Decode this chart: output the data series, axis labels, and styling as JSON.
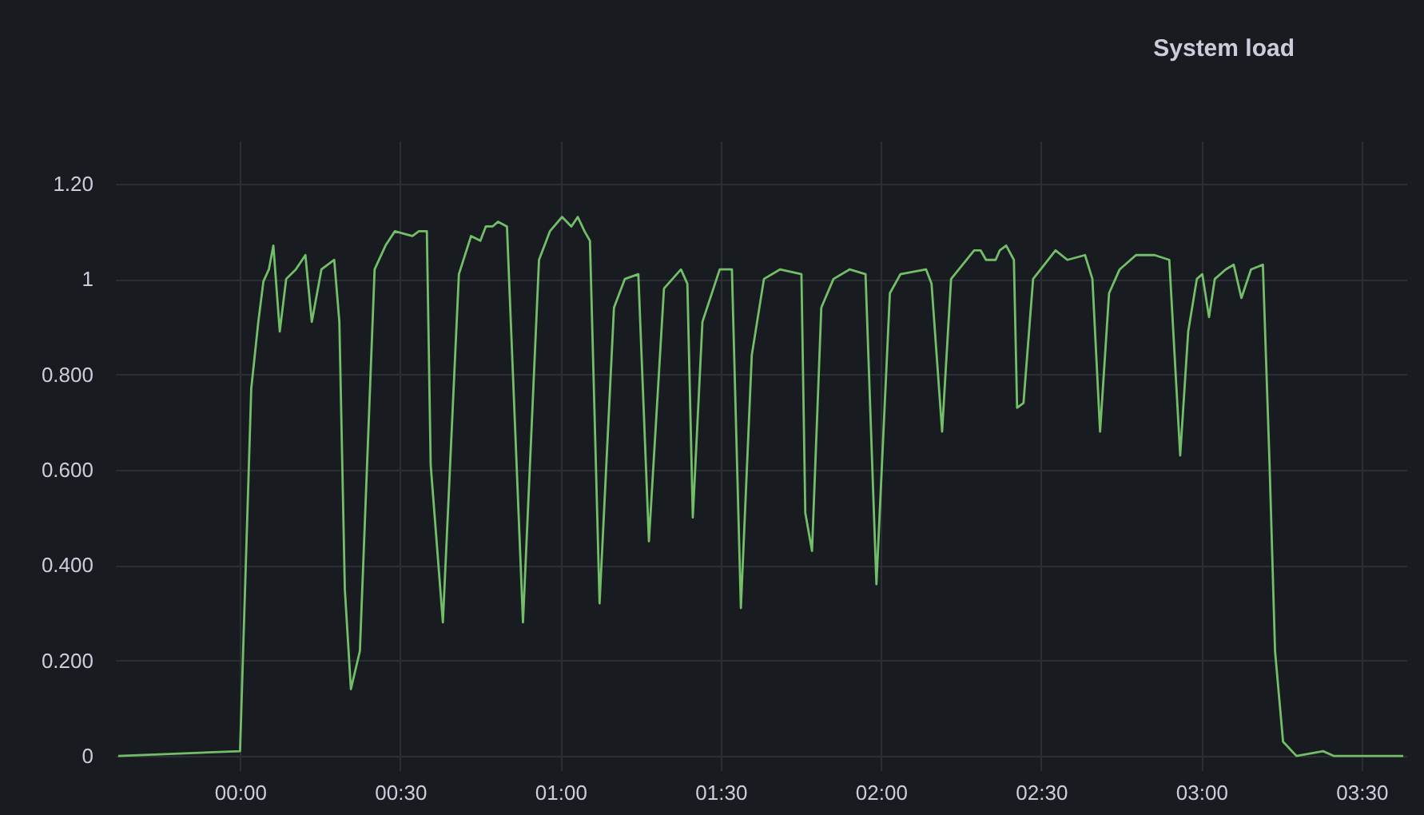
{
  "chart_data": {
    "type": "line",
    "title": "System load",
    "x": [
      -0.38,
      0,
      0.035,
      0.057,
      0.073,
      0.09,
      0.104,
      0.124,
      0.144,
      0.174,
      0.204,
      0.224,
      0.254,
      0.294,
      0.31,
      0.327,
      0.346,
      0.374,
      0.42,
      0.454,
      0.483,
      0.538,
      0.558,
      0.583,
      0.595,
      0.633,
      0.683,
      0.721,
      0.75,
      0.767,
      0.788,
      0.805,
      0.833,
      0.883,
      0.933,
      0.967,
      1.005,
      1.034,
      1.054,
      1.075,
      1.092,
      1.122,
      1.167,
      1.201,
      1.243,
      1.276,
      1.323,
      1.376,
      1.396,
      1.413,
      1.443,
      1.497,
      1.535,
      1.563,
      1.597,
      1.635,
      1.685,
      1.752,
      1.764,
      1.785,
      1.814,
      1.852,
      1.902,
      1.952,
      1.986,
      2.028,
      2.061,
      2.141,
      2.158,
      2.191,
      2.219,
      2.291,
      2.311,
      2.328,
      2.358,
      2.371,
      2.391,
      2.415,
      2.425,
      2.445,
      2.475,
      2.545,
      2.582,
      2.637,
      2.66,
      2.684,
      2.712,
      2.745,
      2.796,
      2.854,
      2.9,
      2.934,
      2.959,
      2.986,
      3.003,
      3.024,
      3.042,
      3.076,
      3.101,
      3.125,
      3.155,
      3.192,
      3.213,
      3.23,
      3.255,
      3.297,
      3.38,
      3.413,
      3.63
    ],
    "series": [
      {
        "color": "#73bf69",
        "values": [
          0,
          0.01,
          0.77,
          0.91,
          0.995,
          1.02,
          1.07,
          0.89,
          1.0,
          1.02,
          1.05,
          0.91,
          1.02,
          1.04,
          0.91,
          0.35,
          0.14,
          0.22,
          1.02,
          1.07,
          1.1,
          1.09,
          1.1,
          1.1,
          0.61,
          0.28,
          1.01,
          1.09,
          1.08,
          1.11,
          1.11,
          1.12,
          1.11,
          0.28,
          1.04,
          1.1,
          1.13,
          1.11,
          1.13,
          1.1,
          1.08,
          0.32,
          0.94,
          1.0,
          1.01,
          0.45,
          0.98,
          1.02,
          0.99,
          0.5,
          0.91,
          1.02,
          1.02,
          0.31,
          0.84,
          1.0,
          1.02,
          1.01,
          0.51,
          0.43,
          0.94,
          1.0,
          1.02,
          1.01,
          0.36,
          0.97,
          1.01,
          1.02,
          0.99,
          0.68,
          1.0,
          1.06,
          1.06,
          1.04,
          1.04,
          1.06,
          1.07,
          1.04,
          0.73,
          0.74,
          1.0,
          1.06,
          1.04,
          1.05,
          1.0,
          0.68,
          0.97,
          1.02,
          1.05,
          1.05,
          1.04,
          0.63,
          0.89,
          1.0,
          1.01,
          0.92,
          1.0,
          1.02,
          1.03,
          0.96,
          1.02,
          1.03,
          0.61,
          0.22,
          0.03,
          0,
          0.01,
          0,
          0
        ]
      }
    ],
    "xlim": [
      -0.39,
      3.64
    ],
    "xticks": [
      {
        "value": 0,
        "label": "00:00"
      },
      {
        "value": 0.5,
        "label": "00:30"
      },
      {
        "value": 1,
        "label": "01:00"
      },
      {
        "value": 1.5,
        "label": "01:30"
      },
      {
        "value": 2,
        "label": "02:00"
      },
      {
        "value": 2.5,
        "label": "02:30"
      },
      {
        "value": 3,
        "label": "03:00"
      },
      {
        "value": 3.5,
        "label": "03:30"
      }
    ],
    "ylim": [
      -0.03,
      1.29
    ],
    "yticks": [
      0,
      {
        "value": 0.2,
        "label": "0.200"
      },
      {
        "value": 0.4,
        "label": "0.400"
      },
      {
        "value": 0.6,
        "label": "0.600"
      },
      {
        "value": 0.8,
        "label": "0.800"
      },
      1,
      {
        "value": 1.2,
        "label": "1.20"
      }
    ],
    "grid": true,
    "marker": "none",
    "line_style": "solid"
  }
}
